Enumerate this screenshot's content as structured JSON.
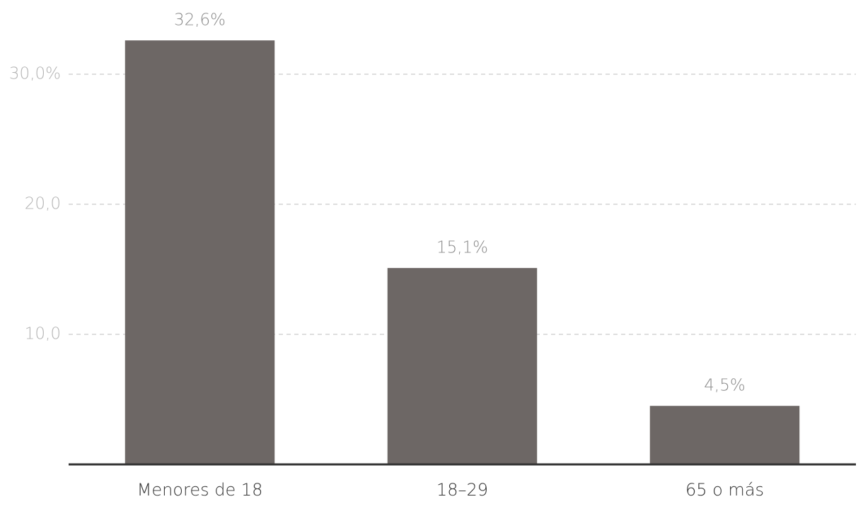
{
  "chart_data": {
    "type": "bar",
    "categories": [
      "Menores de 18",
      "18–29",
      "65 o más"
    ],
    "values": [
      32.6,
      15.1,
      4.5
    ],
    "value_labels": [
      "32,6%",
      "15,1%",
      "4,5%"
    ],
    "color": "#6d6765",
    "ylim": [
      0,
      35
    ],
    "yticks": [
      {
        "value": 10,
        "label": "10,0"
      },
      {
        "value": 20,
        "label": "20,0"
      },
      {
        "value": 30,
        "label": "30,0%"
      }
    ],
    "grid": true
  }
}
